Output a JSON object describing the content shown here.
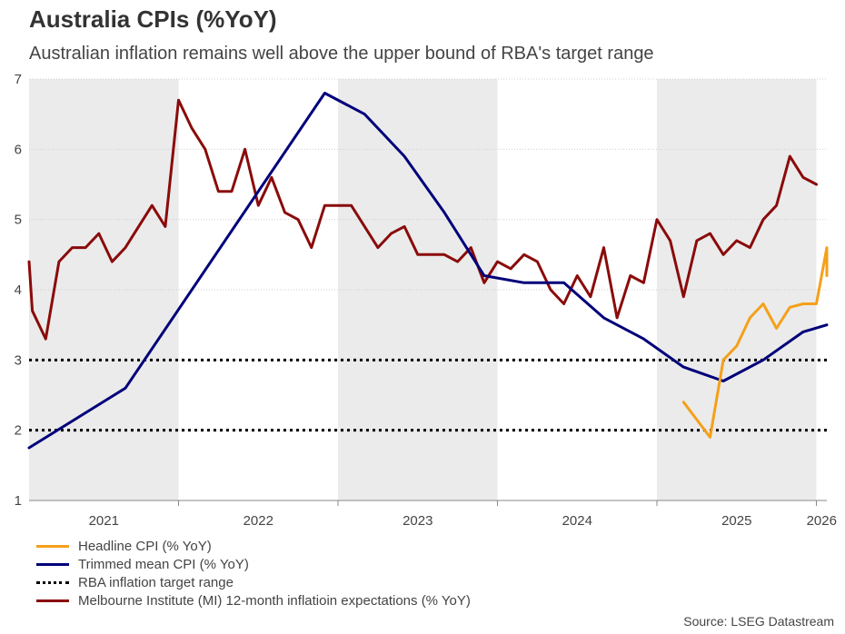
{
  "chart_data": {
    "type": "line",
    "title": "Australia CPIs (%YoY)",
    "subtitle": "Australian inflation remains well above the upper bound of RBA's target range",
    "source": "Source: LSEG Datastream",
    "ylim": [
      1,
      7
    ],
    "yticks": [
      "1",
      "2",
      "3",
      "4",
      "5",
      "6",
      "7"
    ],
    "years": [
      "2021",
      "2022",
      "2023",
      "2024",
      "2025",
      "2026"
    ],
    "legend_position": "bottom-left",
    "shading": "alternate-years",
    "target_range": [
      2,
      3
    ],
    "series": [
      {
        "name": "Headline CPI (% YoY)",
        "color": "#f5a01a",
        "points": [
          [
            "2025-03",
            2.4
          ],
          [
            "2025-05",
            1.9
          ],
          [
            "2025-06",
            3.0
          ],
          [
            "2025-07",
            3.2
          ],
          [
            "2025-08",
            3.6
          ],
          [
            "2025-09",
            3.8
          ],
          [
            "2025-10",
            3.45
          ],
          [
            "2025-11",
            3.75
          ],
          [
            "2025-12",
            3.8
          ],
          [
            "2026-01",
            3.8
          ],
          [
            "2026-02",
            4.6
          ],
          [
            "2026-03",
            4.2
          ]
        ]
      },
      {
        "name": "Trimmed mean CPI (% YoY)",
        "color": "#00007a",
        "points": [
          [
            "2021-01",
            1.75
          ],
          [
            "2021-09",
            2.6
          ],
          [
            "2022-12",
            6.8
          ],
          [
            "2023-03",
            6.5
          ],
          [
            "2023-06",
            5.9
          ],
          [
            "2023-09",
            5.1
          ],
          [
            "2023-12",
            4.2
          ],
          [
            "2024-03",
            4.1
          ],
          [
            "2024-06",
            4.1
          ],
          [
            "2024-09",
            3.6
          ],
          [
            "2024-12",
            3.3
          ],
          [
            "2025-03",
            2.9
          ],
          [
            "2025-06",
            2.7
          ],
          [
            "2025-09",
            3.0
          ],
          [
            "2025-12",
            3.4
          ],
          [
            "2026-03",
            3.5
          ]
        ]
      },
      {
        "name": "RBA inflation target range",
        "color": "#000000",
        "dotted": true,
        "points": []
      },
      {
        "name": "Melbourne Institute (MI) 12-month inflatioin expectations (% YoY)",
        "color": "#8a0b0b",
        "points": [
          [
            "2021-01",
            4.4
          ],
          [
            "2021-02",
            3.7
          ],
          [
            "2021-03",
            3.3
          ],
          [
            "2021-04",
            4.4
          ],
          [
            "2021-05",
            4.6
          ],
          [
            "2021-06",
            4.6
          ],
          [
            "2021-07",
            4.8
          ],
          [
            "2021-08",
            4.4
          ],
          [
            "2021-09",
            4.6
          ],
          [
            "2021-10",
            4.9
          ],
          [
            "2021-11",
            5.2
          ],
          [
            "2021-12",
            4.9
          ],
          [
            "2022-01",
            6.7
          ],
          [
            "2022-02",
            6.3
          ],
          [
            "2022-03",
            6.0
          ],
          [
            "2022-04",
            5.4
          ],
          [
            "2022-05",
            5.4
          ],
          [
            "2022-06",
            6.0
          ],
          [
            "2022-07",
            5.2
          ],
          [
            "2022-08",
            5.6
          ],
          [
            "2022-09",
            5.1
          ],
          [
            "2022-10",
            5.0
          ],
          [
            "2022-11",
            4.6
          ],
          [
            "2022-12",
            5.2
          ],
          [
            "2023-01",
            5.2
          ],
          [
            "2023-02",
            5.2
          ],
          [
            "2023-03",
            4.9
          ],
          [
            "2023-04",
            4.6
          ],
          [
            "2023-05",
            4.8
          ],
          [
            "2023-06",
            4.9
          ],
          [
            "2023-07",
            4.5
          ],
          [
            "2023-08",
            4.5
          ],
          [
            "2023-09",
            4.5
          ],
          [
            "2023-10",
            4.4
          ],
          [
            "2023-11",
            4.6
          ],
          [
            "2023-12",
            4.1
          ],
          [
            "2024-01",
            4.4
          ],
          [
            "2024-02",
            4.3
          ],
          [
            "2024-03",
            4.5
          ],
          [
            "2024-04",
            4.4
          ],
          [
            "2024-05",
            4.0
          ],
          [
            "2024-06",
            3.8
          ],
          [
            "2024-07",
            4.2
          ],
          [
            "2024-08",
            3.9
          ],
          [
            "2024-09",
            4.6
          ],
          [
            "2024-10",
            3.6
          ],
          [
            "2024-11",
            4.2
          ],
          [
            "2024-12",
            4.1
          ],
          [
            "2025-01",
            5.0
          ],
          [
            "2025-02",
            4.7
          ],
          [
            "2025-03",
            3.9
          ],
          [
            "2025-04",
            4.7
          ],
          [
            "2025-05",
            4.8
          ],
          [
            "2025-06",
            4.5
          ],
          [
            "2025-07",
            4.7
          ],
          [
            "2025-08",
            4.6
          ],
          [
            "2025-09",
            5.0
          ],
          [
            "2025-10",
            5.2
          ],
          [
            "2025-11",
            5.9
          ],
          [
            "2025-12",
            5.6
          ],
          [
            "2026-01",
            5.5
          ]
        ]
      }
    ]
  }
}
